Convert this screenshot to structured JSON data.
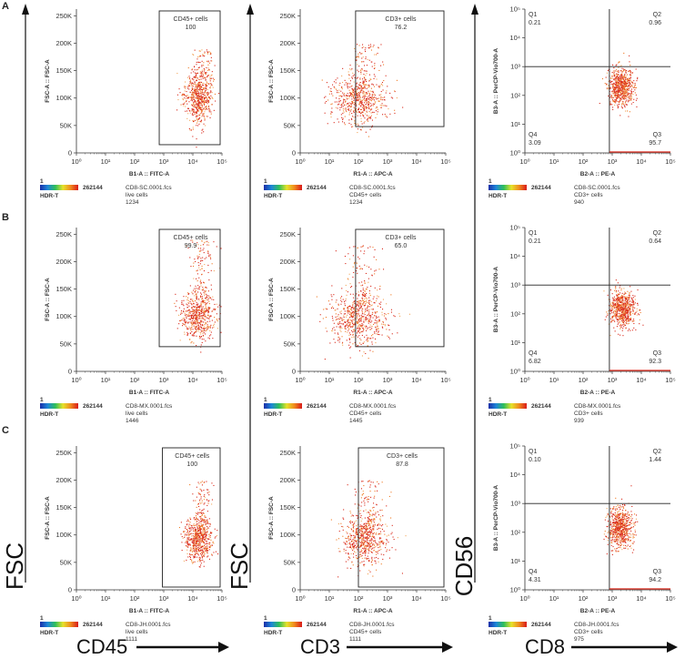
{
  "legend": {
    "min": "1",
    "max": "262144",
    "scale_label": "HDR-T"
  },
  "row_labels": [
    "A",
    "B",
    "C"
  ],
  "column_axis_titles": [
    {
      "x": "CD45",
      "y": "FSC"
    },
    {
      "x": "CD3",
      "y": "FSC"
    },
    {
      "x": "CD8",
      "y": "CD56"
    }
  ],
  "colors": {
    "dot": "#d9281a",
    "dot_alt": "#f07a24",
    "dot_dim": "#f2a65a",
    "axis": "#333333",
    "gate": "#222222"
  },
  "chart_data": [
    {
      "type": "scatter",
      "panel": "A-CD45",
      "xlabel": "B1-A :: FITC-A",
      "ylabel": "FSC-A :: FSC-A",
      "xscale": "log",
      "xlim": [
        1,
        100000
      ],
      "ylim": [
        0,
        262144
      ],
      "yscale": "linear",
      "xticks": [
        "10⁰",
        "10¹",
        "10²",
        "10³",
        "10⁴",
        "10⁵"
      ],
      "yticks": [
        "0",
        "50K",
        "100K",
        "150K",
        "200K",
        "250K"
      ],
      "gate": {
        "name": "CD45+ cells",
        "percent": "100",
        "x_range": [
          700,
          100000
        ],
        "y_range": [
          15000,
          262144
        ]
      },
      "population": {
        "center_x": 15000,
        "center_y": 100000,
        "spread_log_x": 0.25,
        "spread_y": 22000,
        "tail_y_max": 190000,
        "events": 1234
      },
      "info": [
        "CD8-SC.0001.fcs",
        "live cells",
        "1234"
      ]
    },
    {
      "type": "scatter",
      "panel": "A-CD3",
      "xlabel": "R1-A :: APC-A",
      "ylabel": "FSC-A :: FSC-A",
      "xscale": "log",
      "xlim": [
        1,
        100000
      ],
      "ylim": [
        0,
        262144
      ],
      "xticks": [
        "10⁰",
        "10¹",
        "10²",
        "10³",
        "10⁴",
        "10⁵"
      ],
      "yticks": [
        "0",
        "50K",
        "100K",
        "150K",
        "200K",
        "250K"
      ],
      "gate": {
        "name": "CD3+ cells",
        "percent": "76.2",
        "x_range": [
          80,
          100000
        ],
        "y_range": [
          48000,
          262144
        ]
      },
      "population": {
        "center_x": 100,
        "center_y": 97000,
        "spread_log_x": 0.45,
        "spread_y": 22000,
        "tail_y_max": 200000,
        "events": 1234
      },
      "info": [
        "CD8-SC.0001.fcs",
        "CD45+ cells",
        "1234"
      ]
    },
    {
      "type": "scatter",
      "panel": "A-CD8",
      "xlabel": "B2-A :: PE-A",
      "ylabel": "B3-A :: PerCP-Vio700-A",
      "xscale": "log",
      "xlim": [
        1,
        100000
      ],
      "yscale": "log",
      "ylim": [
        1,
        100000
      ],
      "xticks": [
        "10⁰",
        "10¹",
        "10²",
        "10³",
        "10⁴",
        "10⁵"
      ],
      "yticks": [
        "10⁰",
        "10¹",
        "10²",
        "10³",
        "10⁴",
        "10⁵"
      ],
      "quadrant": {
        "x": 800,
        "y": 1000
      },
      "quadrant_values": [
        {
          "name": "Q1",
          "value": "0.21"
        },
        {
          "name": "Q2",
          "value": "0.96"
        },
        {
          "name": "Q3",
          "value": "95.7"
        },
        {
          "name": "Q4",
          "value": "3.09"
        }
      ],
      "population": {
        "center_x": 2000,
        "center_y": 200,
        "spread_log_x": 0.22,
        "spread_log_y": 0.33,
        "events": 940
      },
      "info": [
        "CD8-SC.0001.fcs",
        "CD3+ cells",
        "940"
      ]
    },
    {
      "type": "scatter",
      "panel": "B-CD45",
      "xlabel": "B1-A :: FITC-A",
      "ylabel": "FSC-A :: FSC-A",
      "xscale": "log",
      "xlim": [
        1,
        100000
      ],
      "ylim": [
        0,
        262144
      ],
      "xticks": [
        "10⁰",
        "10¹",
        "10²",
        "10³",
        "10⁴",
        "10⁵"
      ],
      "yticks": [
        "0",
        "50K",
        "100K",
        "150K",
        "200K",
        "250K"
      ],
      "gate": {
        "name": "CD45+ cells",
        "percent": "99.9",
        "x_range": [
          700,
          100000
        ],
        "y_range": [
          45000,
          262144
        ]
      },
      "population": {
        "center_x": 15000,
        "center_y": 100000,
        "spread_log_x": 0.28,
        "spread_y": 22000,
        "tail_y_max": 240000,
        "events": 1446
      },
      "info": [
        "CD8-MX.0001.fcs",
        "live cells",
        "1446"
      ]
    },
    {
      "type": "scatter",
      "panel": "B-CD3",
      "xlabel": "R1-A :: APC-A",
      "ylabel": "FSC-A :: FSC-A",
      "xscale": "log",
      "xlim": [
        1,
        100000
      ],
      "ylim": [
        0,
        262144
      ],
      "xticks": [
        "10⁰",
        "10¹",
        "10²",
        "10³",
        "10⁴",
        "10⁵"
      ],
      "yticks": [
        "0",
        "50K",
        "100K",
        "150K",
        "200K",
        "250K"
      ],
      "gate": {
        "name": "CD3+ cells",
        "percent": "65.0",
        "x_range": [
          80,
          100000
        ],
        "y_range": [
          45000,
          262144
        ]
      },
      "population": {
        "center_x": 90,
        "center_y": 97000,
        "spread_log_x": 0.5,
        "spread_y": 24000,
        "tail_y_max": 230000,
        "events": 1445
      },
      "info": [
        "CD8-MX.0001.fcs",
        "CD45+ cells",
        "1445"
      ]
    },
    {
      "type": "scatter",
      "panel": "B-CD8",
      "xlabel": "B2-A :: PE-A",
      "ylabel": "B3-A :: PerCP-Vio700-A",
      "xscale": "log",
      "xlim": [
        1,
        100000
      ],
      "yscale": "log",
      "ylim": [
        1,
        100000
      ],
      "xticks": [
        "10⁰",
        "10¹",
        "10²",
        "10³",
        "10⁴",
        "10⁵"
      ],
      "yticks": [
        "10⁰",
        "10¹",
        "10²",
        "10³",
        "10⁴",
        "10⁵"
      ],
      "quadrant": {
        "x": 800,
        "y": 1000
      },
      "quadrant_values": [
        {
          "name": "Q1",
          "value": "0.21"
        },
        {
          "name": "Q2",
          "value": "0.64"
        },
        {
          "name": "Q3",
          "value": "92.3"
        },
        {
          "name": "Q4",
          "value": "6.82"
        }
      ],
      "population": {
        "center_x": 2200,
        "center_y": 150,
        "spread_log_x": 0.22,
        "spread_log_y": 0.32,
        "events": 939
      },
      "info": [
        "CD8-MX.0001.fcs",
        "CD3+ cells",
        "939"
      ]
    },
    {
      "type": "scatter",
      "panel": "C-CD45",
      "xlabel": "B1-A :: FITC-A",
      "ylabel": "FSC-A :: FSC-A",
      "xscale": "log",
      "xlim": [
        1,
        100000
      ],
      "ylim": [
        0,
        262144
      ],
      "xticks": [
        "10⁰",
        "10¹",
        "10²",
        "10³",
        "10⁴",
        "10⁵"
      ],
      "yticks": [
        "0",
        "50K",
        "100K",
        "150K",
        "200K",
        "250K"
      ],
      "gate": {
        "name": "CD45+ cells",
        "percent": "100",
        "x_range": [
          900,
          100000
        ],
        "y_range": [
          5000,
          262144
        ]
      },
      "population": {
        "center_x": 15000,
        "center_y": 92000,
        "spread_log_x": 0.22,
        "spread_y": 20000,
        "tail_y_max": 200000,
        "events": 1111
      },
      "info": [
        "CD8-JH.0001.fcs",
        "live cells",
        "1111"
      ]
    },
    {
      "type": "scatter",
      "panel": "C-CD3",
      "xlabel": "R1-A :: APC-A",
      "ylabel": "FSC-A :: FSC-A",
      "xscale": "log",
      "xlim": [
        1,
        100000
      ],
      "ylim": [
        0,
        262144
      ],
      "xticks": [
        "10⁰",
        "10¹",
        "10²",
        "10³",
        "10⁴",
        "10⁵"
      ],
      "yticks": [
        "0",
        "50K",
        "100K",
        "150K",
        "200K",
        "250K"
      ],
      "gate": {
        "name": "CD3+ cells",
        "percent": "87.8",
        "x_range": [
          100,
          100000
        ],
        "y_range": [
          5000,
          262144
        ]
      },
      "population": {
        "center_x": 150,
        "center_y": 92000,
        "spread_log_x": 0.4,
        "spread_y": 22000,
        "tail_y_max": 200000,
        "events": 1111
      },
      "info": [
        "CD8-JH.0001.fcs",
        "CD45+ cells",
        "1111"
      ]
    },
    {
      "type": "scatter",
      "panel": "C-CD8",
      "xlabel": "B2-A :: PE-A",
      "ylabel": "B3-A :: PerCP-Vio700-A",
      "xscale": "log",
      "xlim": [
        1,
        100000
      ],
      "yscale": "log",
      "ylim": [
        1,
        100000
      ],
      "xticks": [
        "10⁰",
        "10¹",
        "10²",
        "10³",
        "10⁴",
        "10⁵"
      ],
      "yticks": [
        "10⁰",
        "10¹",
        "10²",
        "10³",
        "10⁴",
        "10⁵"
      ],
      "quadrant": {
        "x": 800,
        "y": 1000
      },
      "quadrant_values": [
        {
          "name": "Q1",
          "value": "0.10"
        },
        {
          "name": "Q2",
          "value": "1.44"
        },
        {
          "name": "Q3",
          "value": "94.2"
        },
        {
          "name": "Q4",
          "value": "4.31"
        }
      ],
      "population": {
        "center_x": 1800,
        "center_y": 150,
        "spread_log_x": 0.2,
        "spread_log_y": 0.34,
        "events": 975
      },
      "info": [
        "CD8-JH.0001.fcs",
        "CD3+ cells",
        "975"
      ]
    }
  ]
}
